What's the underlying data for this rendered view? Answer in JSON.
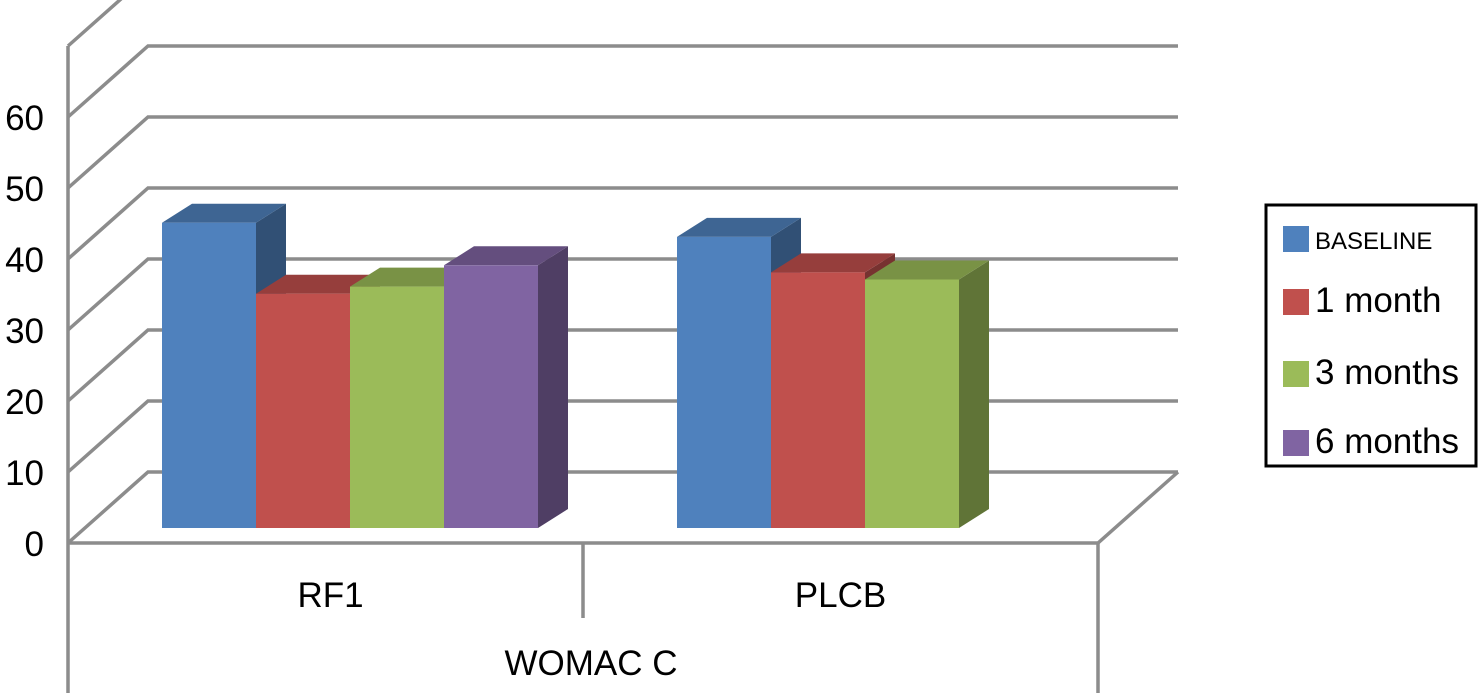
{
  "chart_data": {
    "type": "bar",
    "style": "3d-clustered",
    "categories": [
      "RF1",
      "PLCB"
    ],
    "group_label": "WOMAC C",
    "series": [
      {
        "name": "BASELINE",
        "values": [
          43,
          41
        ],
        "color": "#4F81BD"
      },
      {
        "name": "1 month",
        "values": [
          33,
          36
        ],
        "color": "#C0504D"
      },
      {
        "name": "3 months",
        "values": [
          34,
          35
        ],
        "color": "#9BBB59"
      },
      {
        "name": "6 months",
        "values": [
          37,
          null
        ],
        "color": "#8064A2"
      }
    ],
    "ylim": [
      0,
      60
    ],
    "yticks": [
      0,
      10,
      20,
      30,
      40,
      50,
      60
    ],
    "grid": true,
    "legend_position": "right",
    "title": "",
    "xlabel": "",
    "ylabel": ""
  }
}
